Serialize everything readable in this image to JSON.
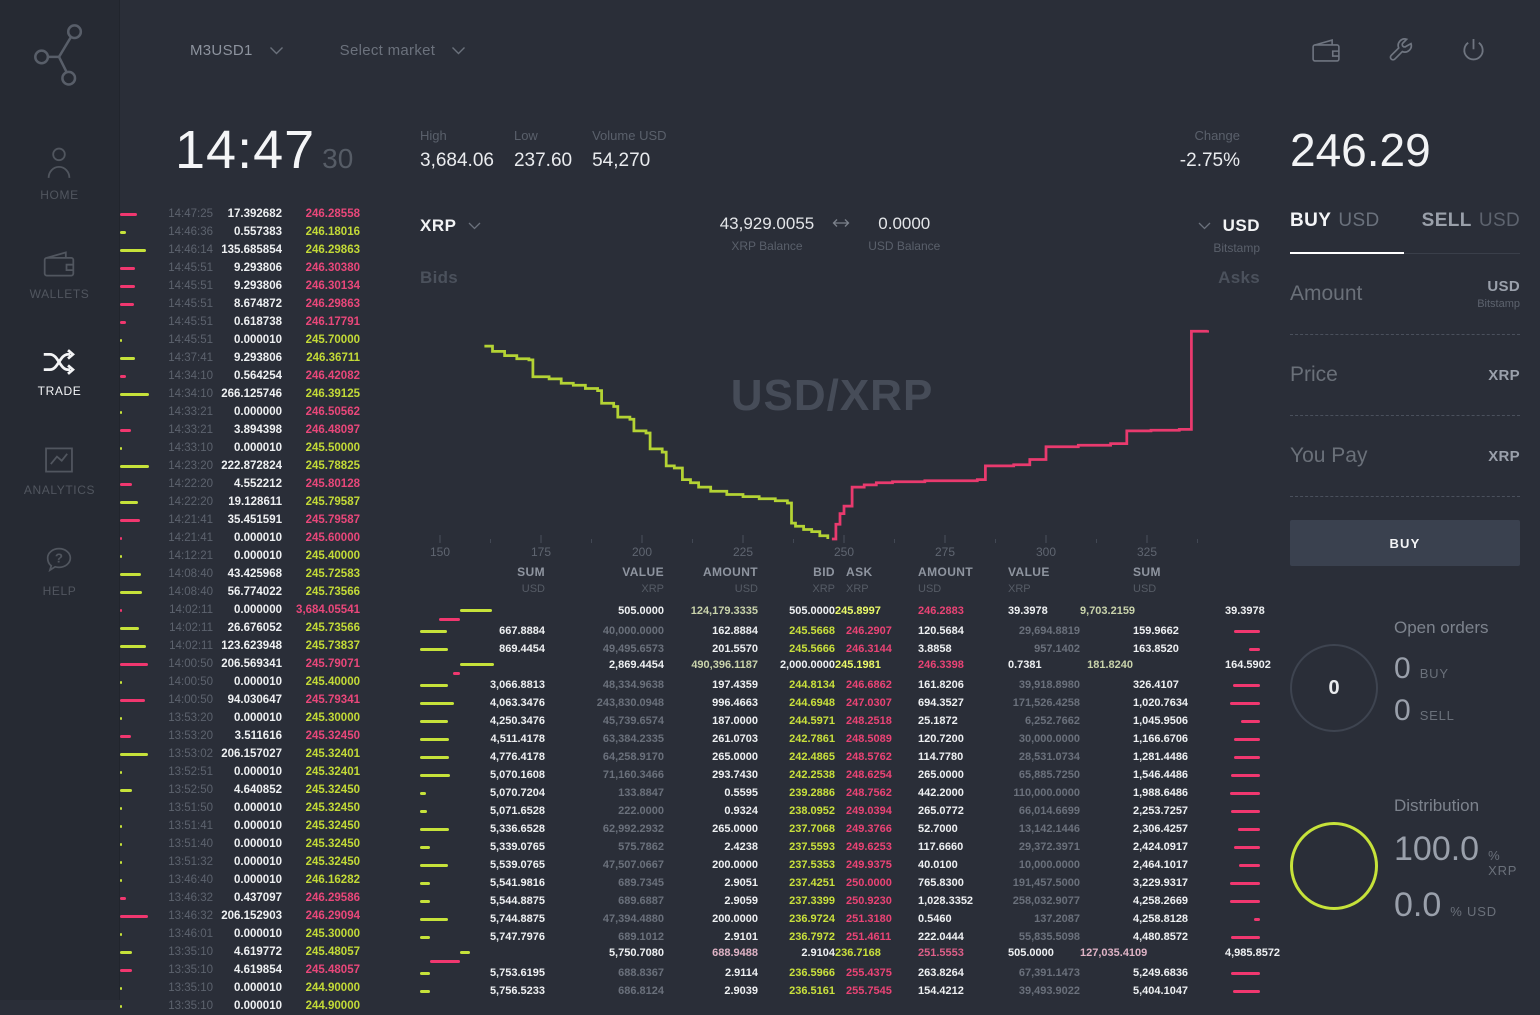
{
  "topbar": {
    "pair": "M3USD1",
    "market_placeholder": "Select market",
    "action_icons": [
      "wallet-icon",
      "wrench-icon",
      "power-icon"
    ]
  },
  "sidebar": {
    "items": [
      {
        "id": "home",
        "label": "HOME",
        "icon": "user-icon",
        "active": false
      },
      {
        "id": "wallets",
        "label": "WALLETS",
        "icon": "wallet-icon",
        "active": false
      },
      {
        "id": "trade",
        "label": "TRADE",
        "icon": "shuffle-icon",
        "active": true
      },
      {
        "id": "analytics",
        "label": "ANALYTICS",
        "icon": "line-chart-icon",
        "active": false
      },
      {
        "id": "help",
        "label": "HELP",
        "icon": "help-bubble-icon",
        "active": false
      }
    ]
  },
  "stats": {
    "clock": "14:47",
    "clock_seconds": "30",
    "high_label": "High",
    "high": "3,684.06",
    "low_label": "Low",
    "low": "237.60",
    "volume_label": "Volume USD",
    "volume": "54,270",
    "change_label": "Change",
    "change": "-2.75%",
    "last_price": "246.29"
  },
  "market": {
    "base": "XRP",
    "base_balance": "43,929.0055",
    "base_balance_label": "XRP Balance",
    "quote_balance": "0.0000",
    "quote_balance_label": "USD Balance",
    "quote": "USD",
    "exchange": "Bitstamp",
    "bids_label": "Bids",
    "asks_label": "Asks"
  },
  "colors": {
    "lime": "#c3da37",
    "lime_bar": "#c6e23a",
    "lime_line": "#b4d334",
    "pink": "#ea4375",
    "pink_bar": "#f0376f",
    "pink_line": "#e93a6e",
    "bid_highlight_bg": "#7da32c",
    "ask_highlight_bg": "#d3396c",
    "background": "#2a2e38",
    "sidebar_background": "#262a33"
  },
  "chart_data": {
    "type": "area",
    "subtype": "market-depth-step",
    "title_watermark": "USD/XRP",
    "x_axis": {
      "range": [
        145,
        348
      ],
      "major_ticks": [
        150,
        175,
        200,
        225,
        250,
        275,
        300,
        325
      ],
      "minor_tick_offset": 12.5
    },
    "y_axis": {
      "note": "points are [price, depth_fraction_from_top]; 1.0 = zero depth baseline"
    },
    "legend": "off",
    "series": [
      {
        "name": "Bids",
        "color": "#b4d334",
        "points": [
          [
            161,
            0.09
          ],
          [
            163,
            0.115
          ],
          [
            166,
            0.135
          ],
          [
            169,
            0.15
          ],
          [
            172,
            0.155
          ],
          [
            173,
            0.235
          ],
          [
            177,
            0.245
          ],
          [
            180,
            0.265
          ],
          [
            183,
            0.275
          ],
          [
            186,
            0.29
          ],
          [
            189,
            0.3
          ],
          [
            190,
            0.36
          ],
          [
            193,
            0.375
          ],
          [
            194,
            0.425
          ],
          [
            197,
            0.435
          ],
          [
            198,
            0.49
          ],
          [
            201,
            0.5
          ],
          [
            202,
            0.575
          ],
          [
            205,
            0.59
          ],
          [
            206,
            0.655
          ],
          [
            208,
            0.665
          ],
          [
            210,
            0.72
          ],
          [
            212,
            0.735
          ],
          [
            214,
            0.755
          ],
          [
            217,
            0.775
          ],
          [
            221,
            0.79
          ],
          [
            225,
            0.8
          ],
          [
            229,
            0.81
          ],
          [
            233,
            0.82
          ],
          [
            236,
            0.83
          ],
          [
            237,
            0.925
          ],
          [
            238,
            0.94
          ],
          [
            240,
            0.955
          ],
          [
            242,
            0.965
          ],
          [
            244,
            0.985
          ],
          [
            246,
            1.0
          ]
        ]
      },
      {
        "name": "Asks",
        "color": "#e93a6e",
        "points": [
          [
            247,
            1.0
          ],
          [
            248,
            0.93
          ],
          [
            249,
            0.88
          ],
          [
            250,
            0.845
          ],
          [
            252,
            0.755
          ],
          [
            255,
            0.745
          ],
          [
            258,
            0.735
          ],
          [
            262,
            0.73
          ],
          [
            270,
            0.725
          ],
          [
            283,
            0.72
          ],
          [
            285,
            0.655
          ],
          [
            292,
            0.65
          ],
          [
            296,
            0.625
          ],
          [
            300,
            0.565
          ],
          [
            308,
            0.558
          ],
          [
            316,
            0.55
          ],
          [
            320,
            0.49
          ],
          [
            326,
            0.487
          ],
          [
            333,
            0.483
          ],
          [
            336,
            0.02
          ],
          [
            340,
            0.015
          ]
        ]
      }
    ]
  },
  "trade_history": {
    "rows": [
      {
        "time": "14:47:25",
        "amount": "17.392682",
        "price": "246.28558",
        "dir": "sell"
      },
      {
        "time": "14:46:36",
        "amount": "0.557383",
        "price": "246.18016",
        "dir": "buy"
      },
      {
        "time": "14:46:14",
        "amount": "135.685854",
        "price": "246.29863",
        "dir": "buy"
      },
      {
        "time": "14:45:51",
        "amount": "9.293806",
        "price": "246.30380",
        "dir": "sell"
      },
      {
        "time": "14:45:51",
        "amount": "9.293806",
        "price": "246.30134",
        "dir": "sell"
      },
      {
        "time": "14:45:51",
        "amount": "8.674872",
        "price": "246.29863",
        "dir": "sell"
      },
      {
        "time": "14:45:51",
        "amount": "0.618738",
        "price": "246.17791",
        "dir": "sell"
      },
      {
        "time": "14:45:51",
        "amount": "0.000010",
        "price": "245.70000",
        "dir": "buy"
      },
      {
        "time": "14:37:41",
        "amount": "9.293806",
        "price": "246.36711",
        "dir": "buy"
      },
      {
        "time": "14:34:10",
        "amount": "0.564254",
        "price": "246.42082",
        "dir": "sell"
      },
      {
        "time": "14:34:10",
        "amount": "266.125746",
        "price": "246.39125",
        "dir": "buy"
      },
      {
        "time": "14:33:21",
        "amount": "0.000000",
        "price": "246.50562",
        "dir": "sell",
        "bar": "buy"
      },
      {
        "time": "14:33:21",
        "amount": "3.894398",
        "price": "246.48097",
        "dir": "sell"
      },
      {
        "time": "14:33:10",
        "amount": "0.000010",
        "price": "245.50000",
        "dir": "buy"
      },
      {
        "time": "14:23:20",
        "amount": "222.872824",
        "price": "245.78825",
        "dir": "buy"
      },
      {
        "time": "14:22:20",
        "amount": "4.552212",
        "price": "245.80128",
        "dir": "sell"
      },
      {
        "time": "14:22:20",
        "amount": "19.128611",
        "price": "245.79587",
        "dir": "buy"
      },
      {
        "time": "14:21:41",
        "amount": "35.451591",
        "price": "245.79587",
        "dir": "sell"
      },
      {
        "time": "14:21:41",
        "amount": "0.000010",
        "price": "245.60000",
        "dir": "sell"
      },
      {
        "time": "14:12:21",
        "amount": "0.000010",
        "price": "245.40000",
        "dir": "buy"
      },
      {
        "time": "14:08:40",
        "amount": "43.425968",
        "price": "245.72583",
        "dir": "buy"
      },
      {
        "time": "14:08:40",
        "amount": "56.774022",
        "price": "245.73566",
        "dir": "buy"
      },
      {
        "time": "14:02:11",
        "amount": "0.000000",
        "price": "3,684.05541",
        "dir": "sell"
      },
      {
        "time": "14:02:11",
        "amount": "26.676052",
        "price": "245.73566",
        "dir": "buy"
      },
      {
        "time": "14:02:11",
        "amount": "123.623948",
        "price": "245.73837",
        "dir": "buy"
      },
      {
        "time": "14:00:50",
        "amount": "206.569341",
        "price": "245.79071",
        "dir": "sell"
      },
      {
        "time": "14:00:50",
        "amount": "0.000010",
        "price": "245.40000",
        "dir": "buy"
      },
      {
        "time": "14:00:50",
        "amount": "94.030647",
        "price": "245.79341",
        "dir": "sell"
      },
      {
        "time": "13:53:20",
        "amount": "0.000010",
        "price": "245.30000",
        "dir": "buy"
      },
      {
        "time": "13:53:20",
        "amount": "3.511616",
        "price": "245.32450",
        "dir": "sell"
      },
      {
        "time": "13:53:02",
        "amount": "206.157027",
        "price": "245.32401",
        "dir": "buy"
      },
      {
        "time": "13:52:51",
        "amount": "0.000010",
        "price": "245.32401",
        "dir": "buy"
      },
      {
        "time": "13:52:50",
        "amount": "4.640852",
        "price": "245.32450",
        "dir": "buy"
      },
      {
        "time": "13:51:50",
        "amount": "0.000010",
        "price": "245.32450",
        "dir": "buy"
      },
      {
        "time": "13:51:41",
        "amount": "0.000010",
        "price": "245.32450",
        "dir": "buy"
      },
      {
        "time": "13:51:40",
        "amount": "0.000010",
        "price": "245.32450",
        "dir": "buy"
      },
      {
        "time": "13:51:32",
        "amount": "0.000010",
        "price": "245.32450",
        "dir": "buy"
      },
      {
        "time": "13:46:40",
        "amount": "0.000010",
        "price": "246.16282",
        "dir": "buy"
      },
      {
        "time": "13:46:32",
        "amount": "0.437097",
        "price": "246.29586",
        "dir": "sell"
      },
      {
        "time": "13:46:32",
        "amount": "206.152903",
        "price": "246.29094",
        "dir": "sell"
      },
      {
        "time": "13:46:01",
        "amount": "0.000010",
        "price": "245.30000",
        "dir": "buy"
      },
      {
        "time": "13:35:10",
        "amount": "4.619772",
        "price": "245.48057",
        "dir": "buy"
      },
      {
        "time": "13:35:10",
        "amount": "4.619854",
        "price": "245.48057",
        "dir": "sell"
      },
      {
        "time": "13:35:10",
        "amount": "0.000010",
        "price": "244.90000",
        "dir": "buy"
      },
      {
        "time": "13:35:10",
        "amount": "0.000010",
        "price": "244.90000",
        "dir": "buy"
      }
    ]
  },
  "order_book": {
    "bid_headers": [
      {
        "t": "SUM",
        "u": "USD"
      },
      {
        "t": "VALUE",
        "u": "XRP"
      },
      {
        "t": "AMOUNT",
        "u": "USD"
      },
      {
        "t": "BID",
        "u": "XRP"
      }
    ],
    "ask_headers": [
      {
        "t": "ASK",
        "u": "XRP"
      },
      {
        "t": "AMOUNT",
        "u": "USD"
      },
      {
        "t": "VALUE",
        "u": "XRP"
      },
      {
        "t": "SUM",
        "u": "USD"
      }
    ],
    "rows": [
      {
        "bid_sum": "505.0000",
        "bid_value": "124,179.3335",
        "bid_amount": "505.0000",
        "bid": "245.8997",
        "bid_highlight": true,
        "ask": "246.2883",
        "ask_amount": "39.3978",
        "ask_value": "9,703.2159",
        "ask_sum": "39.3978"
      },
      {
        "bid_sum": "667.8884",
        "bid_value": "40,000.0000",
        "bid_amount": "162.8884",
        "bid": "245.5668",
        "ask": "246.2907",
        "ask_amount": "120.5684",
        "ask_value": "29,694.8819",
        "ask_sum": "159.9662"
      },
      {
        "bid_sum": "869.4454",
        "bid_value": "49,495.6573",
        "bid_amount": "201.5570",
        "bid": "245.5666",
        "ask": "246.3144",
        "ask_amount": "3.8858",
        "ask_value": "957.1402",
        "ask_sum": "163.8520"
      },
      {
        "bid_sum": "2,869.4454",
        "bid_value": "490,396.1187",
        "bid_amount": "2,000.0000",
        "bid": "245.1981",
        "bid_highlight": true,
        "ask": "246.3398",
        "ask_amount": "0.7381",
        "ask_value": "181.8240",
        "ask_sum": "164.5902"
      },
      {
        "bid_sum": "3,066.8813",
        "bid_value": "48,334.9638",
        "bid_amount": "197.4359",
        "bid": "244.8134",
        "ask": "246.6862",
        "ask_amount": "161.8206",
        "ask_value": "39,918.8980",
        "ask_sum": "326.4107"
      },
      {
        "bid_sum": "4,063.3476",
        "bid_value": "243,830.0948",
        "bid_amount": "996.4663",
        "bid": "244.6948",
        "ask": "247.0307",
        "ask_amount": "694.3527",
        "ask_value": "171,526.4258",
        "ask_sum": "1,020.7634"
      },
      {
        "bid_sum": "4,250.3476",
        "bid_value": "45,739.6574",
        "bid_amount": "187.0000",
        "bid": "244.5971",
        "ask": "248.2518",
        "ask_amount": "25.1872",
        "ask_value": "6,252.7662",
        "ask_sum": "1,045.9506"
      },
      {
        "bid_sum": "4,511.4178",
        "bid_value": "63,384.2335",
        "bid_amount": "261.0703",
        "bid": "242.7861",
        "ask": "248.5089",
        "ask_amount": "120.7200",
        "ask_value": "30,000.0000",
        "ask_sum": "1,166.6706"
      },
      {
        "bid_sum": "4,776.4178",
        "bid_value": "64,258.9170",
        "bid_amount": "265.0000",
        "bid": "242.4865",
        "ask": "248.5762",
        "ask_amount": "114.7780",
        "ask_value": "28,531.0734",
        "ask_sum": "1,281.4486"
      },
      {
        "bid_sum": "5,070.1608",
        "bid_value": "71,160.3466",
        "bid_amount": "293.7430",
        "bid": "242.2538",
        "ask": "248.6254",
        "ask_amount": "265.0000",
        "ask_value": "65,885.7250",
        "ask_sum": "1,546.4486"
      },
      {
        "bid_sum": "5,070.7204",
        "bid_value": "133.8847",
        "bid_amount": "0.5595",
        "bid": "239.2886",
        "ask": "248.7562",
        "ask_amount": "442.2000",
        "ask_value": "110,000.0000",
        "ask_sum": "1,988.6486"
      },
      {
        "bid_sum": "5,071.6528",
        "bid_value": "222.0000",
        "bid_amount": "0.9324",
        "bid": "238.0952",
        "ask": "249.0394",
        "ask_amount": "265.0772",
        "ask_value": "66,014.6699",
        "ask_sum": "2,253.7257"
      },
      {
        "bid_sum": "5,336.6528",
        "bid_value": "62,992.2932",
        "bid_amount": "265.0000",
        "bid": "237.7068",
        "ask": "249.3766",
        "ask_amount": "52.7000",
        "ask_value": "13,142.1446",
        "ask_sum": "2,306.4257"
      },
      {
        "bid_sum": "5,339.0765",
        "bid_value": "575.7862",
        "bid_amount": "2.4238",
        "bid": "237.5593",
        "ask": "249.6253",
        "ask_amount": "117.6660",
        "ask_value": "29,372.3971",
        "ask_sum": "2,424.0917"
      },
      {
        "bid_sum": "5,539.0765",
        "bid_value": "47,507.0667",
        "bid_amount": "200.0000",
        "bid": "237.5353",
        "ask": "249.9375",
        "ask_amount": "40.0100",
        "ask_value": "10,000.0000",
        "ask_sum": "2,464.1017"
      },
      {
        "bid_sum": "5,541.9816",
        "bid_value": "689.7345",
        "bid_amount": "2.9051",
        "bid": "237.4251",
        "ask": "250.0000",
        "ask_amount": "765.8300",
        "ask_value": "191,457.5000",
        "ask_sum": "3,229.9317"
      },
      {
        "bid_sum": "5,544.8875",
        "bid_value": "689.6887",
        "bid_amount": "2.9059",
        "bid": "237.3399",
        "ask": "250.9230",
        "ask_amount": "1,028.3352",
        "ask_value": "258,032.9077",
        "ask_sum": "4,258.2669"
      },
      {
        "bid_sum": "5,744.8875",
        "bid_value": "47,394.4880",
        "bid_amount": "200.0000",
        "bid": "236.9724",
        "ask": "251.3180",
        "ask_amount": "0.5460",
        "ask_value": "137.2087",
        "ask_sum": "4,258.8128"
      },
      {
        "bid_sum": "5,747.7976",
        "bid_value": "689.1012",
        "bid_amount": "2.9101",
        "bid": "236.7972",
        "ask": "251.4611",
        "ask_amount": "222.0444",
        "ask_value": "55,835.5098",
        "ask_sum": "4,480.8572"
      },
      {
        "bid_sum": "5,750.7080",
        "bid_value": "688.9488",
        "bid_amount": "2.9104",
        "bid": "236.7168",
        "ask": "251.5553",
        "ask_highlight": true,
        "ask_amount": "505.0000",
        "ask_value": "127,035.4109",
        "ask_sum": "4,985.8572"
      },
      {
        "bid_sum": "5,753.6195",
        "bid_value": "688.8367",
        "bid_amount": "2.9114",
        "bid": "236.5966",
        "ask": "255.4375",
        "ask_amount": "263.8264",
        "ask_value": "67,391.1473",
        "ask_sum": "5,249.6836"
      },
      {
        "bid_sum": "5,756.5233",
        "bid_value": "686.8124",
        "bid_amount": "2.9039",
        "bid": "236.5161",
        "ask": "255.7545",
        "ask_amount": "154.4212",
        "ask_value": "39,493.9022",
        "ask_sum": "5,404.1047"
      }
    ]
  },
  "panel": {
    "tabs": [
      {
        "action": "BUY",
        "currency": "USD",
        "active": true
      },
      {
        "action": "SELL",
        "currency": "USD",
        "active": false
      }
    ],
    "fields": [
      {
        "label": "Amount",
        "value": "",
        "unit": "USD",
        "unit_sub": "Bitstamp"
      },
      {
        "label": "Price",
        "value": "",
        "unit": "XRP",
        "unit_sub": ""
      },
      {
        "label": "You Pay",
        "value": "",
        "unit": "XRP",
        "unit_sub": ""
      }
    ],
    "submit_label": "BUY",
    "open_orders": {
      "title": "Open orders",
      "total_badge": "0",
      "rows": [
        {
          "count": "0",
          "label": "BUY"
        },
        {
          "count": "0",
          "label": "SELL"
        }
      ]
    },
    "distribution": {
      "title": "Distribution",
      "rows": [
        {
          "value": "100.0",
          "label": "% XRP"
        },
        {
          "value": "0.0",
          "label": "% USD"
        }
      ]
    }
  }
}
